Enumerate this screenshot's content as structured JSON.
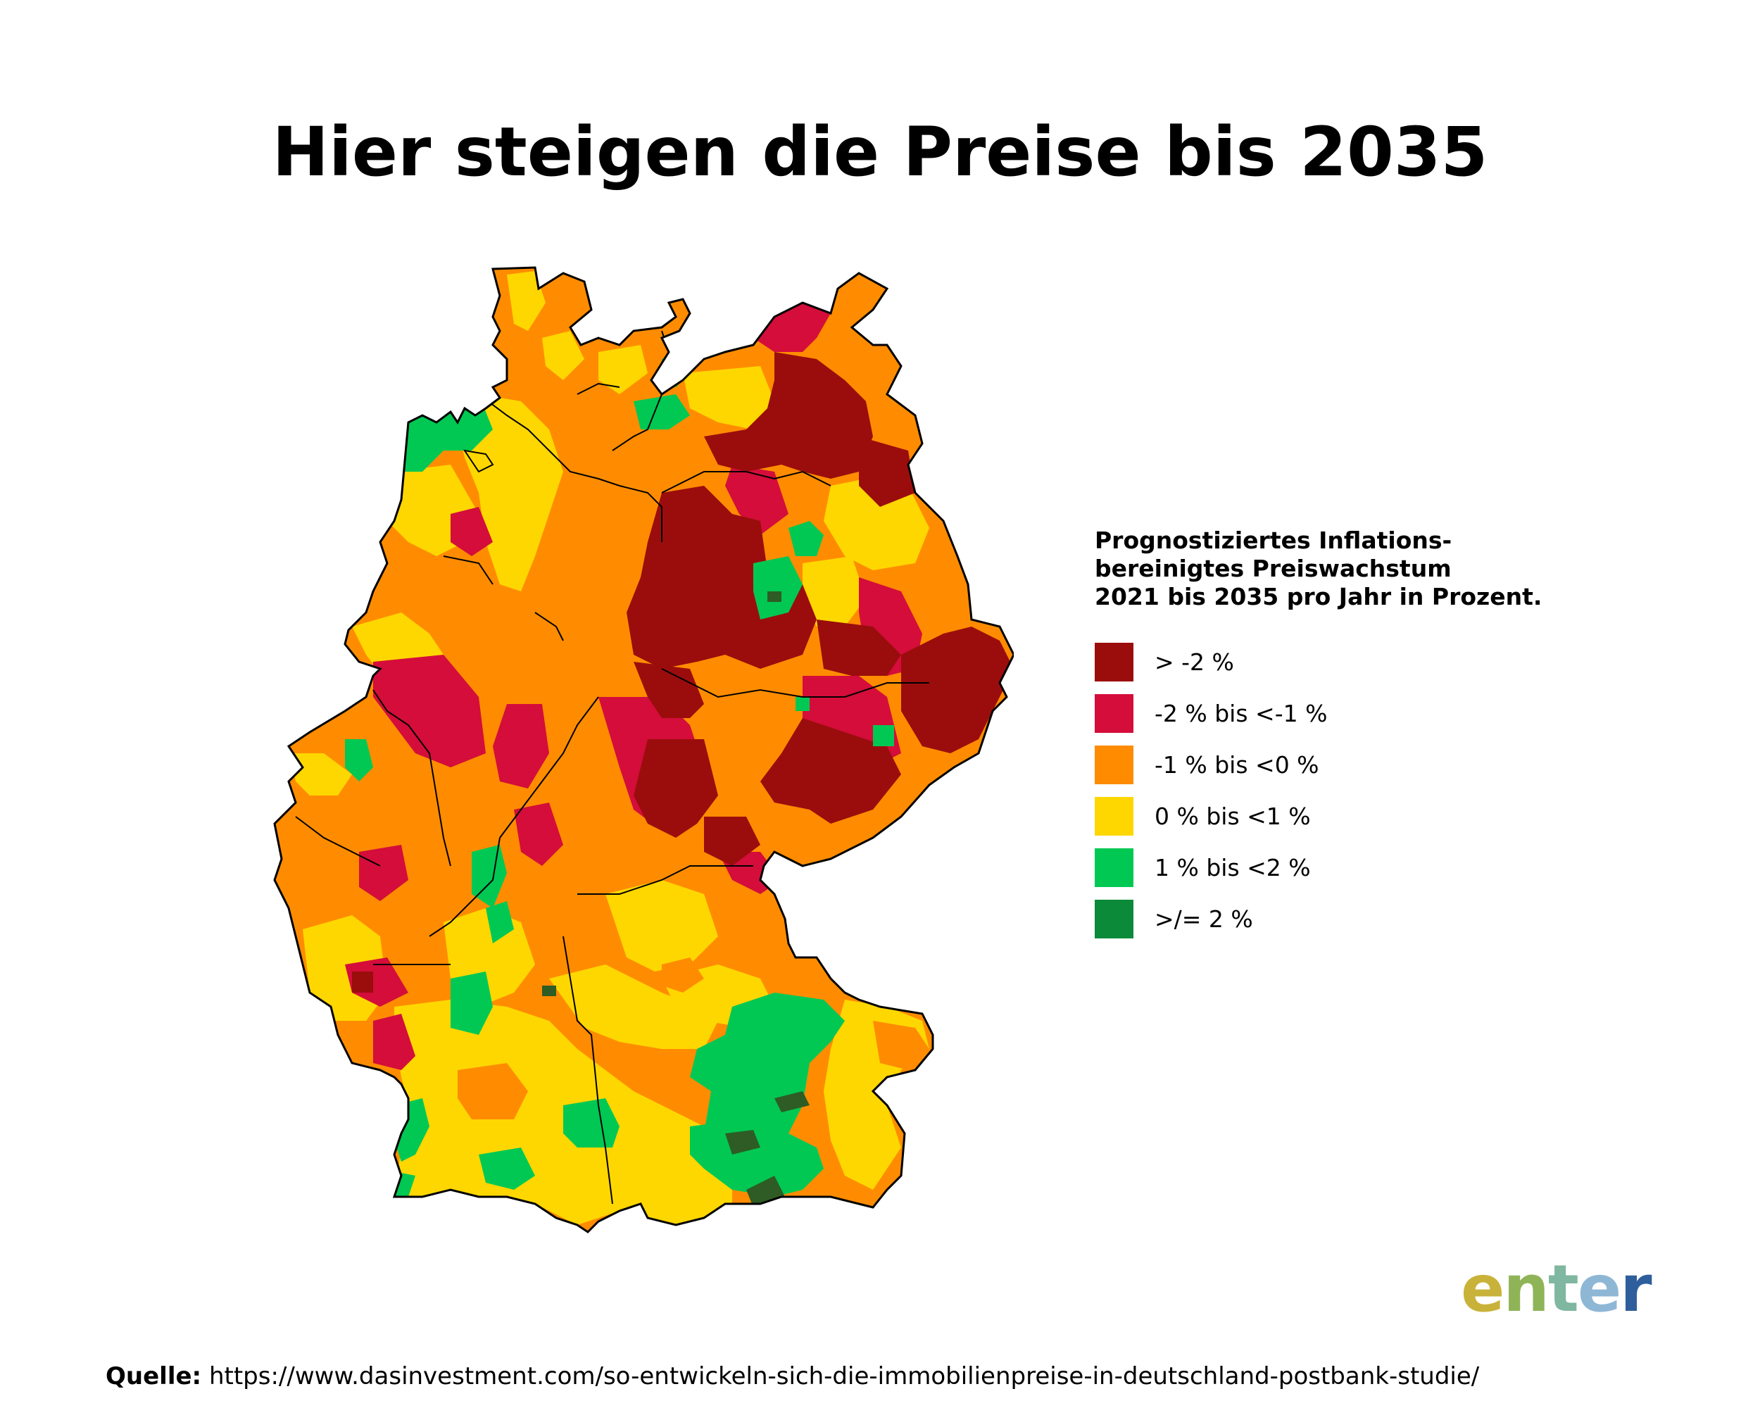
{
  "title": "Hier steigen die Preise bis 2035",
  "legend": {
    "title_lines": [
      "Prognostiziertes Inflations-",
      "bereinigtes Preiswachstum",
      "2021 bis 2035 pro Jahr in Prozent."
    ],
    "items": [
      {
        "label": "> -2 %",
        "color": "#9b0d0d"
      },
      {
        "label": "-2 % bis <-1 %",
        "color": "#d40d3a"
      },
      {
        "label": "-1 % bis <0 %",
        "color": "#ff8c00"
      },
      {
        "label": "0 % bis <1 %",
        "color": "#ffd700"
      },
      {
        "label": "1 % bis <2 %",
        "color": "#00c853"
      },
      {
        "label": ">/= 2 %",
        "color": "#0b8a3a"
      }
    ]
  },
  "logo": {
    "letters": [
      "e",
      "n",
      "t",
      "e",
      "r"
    ],
    "colors": [
      "#c9b23a",
      "#8fb457",
      "#7fb7a0",
      "#8eb7d6",
      "#2e5f9c"
    ]
  },
  "source": {
    "label": "Quelle:",
    "url": "https://www.dasinvestment.com/so-entwickeln-sich-die-immobilienpreise-in-deutschland-postbank-studie/"
  }
}
